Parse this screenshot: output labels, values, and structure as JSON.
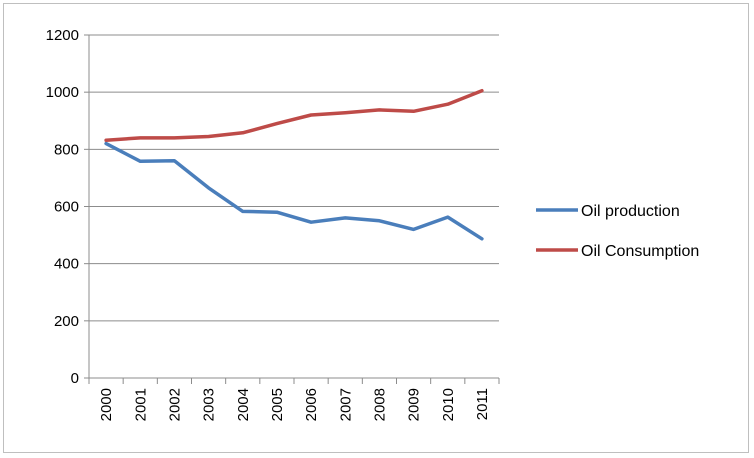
{
  "chart_data": {
    "type": "line",
    "categories": [
      "2000",
      "2001",
      "2002",
      "2003",
      "2004",
      "2005",
      "2006",
      "2007",
      "2008",
      "2009",
      "2010",
      "2011"
    ],
    "series": [
      {
        "name": "Oil production",
        "color": "#4a7ebb",
        "values": [
          820,
          758,
          760,
          665,
          583,
          580,
          545,
          560,
          550,
          520,
          563,
          487
        ]
      },
      {
        "name": "Oil Consumption",
        "color": "#be4b48",
        "values": [
          832,
          840,
          840,
          845,
          858,
          890,
          920,
          928,
          938,
          933,
          958,
          1005
        ]
      }
    ],
    "ylim": [
      0,
      1200
    ],
    "yticks": [
      "0",
      "200",
      "400",
      "600",
      "800",
      "1000",
      "1200"
    ],
    "grid": true,
    "legend_position": "right",
    "title": "",
    "xlabel": "",
    "ylabel": ""
  }
}
